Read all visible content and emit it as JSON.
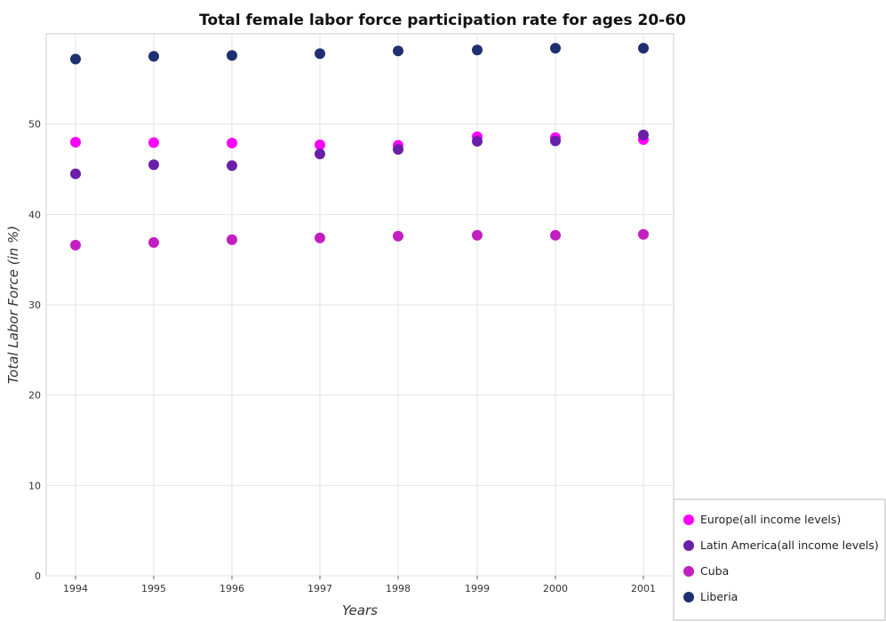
{
  "chart_data": {
    "type": "scatter",
    "title": "Total female labor force participation rate for ages 20-60",
    "xlabel": "Years",
    "ylabel": "Total Labor Force (in %)",
    "categories": [
      "1994",
      "1995",
      "1996",
      "1997",
      "1998",
      "1999",
      "2000",
      "2001"
    ],
    "ylim": [
      0,
      60
    ],
    "yticks": [
      0,
      10,
      20,
      30,
      40,
      50
    ],
    "grid": true,
    "legend_position": "bottom-right",
    "series": [
      {
        "name": "Europe(all income levels)",
        "color": "#ff00ff",
        "values": [
          48.0,
          47.95,
          47.9,
          47.7,
          47.65,
          48.6,
          48.5,
          48.3
        ]
      },
      {
        "name": "Latin America(all income levels)",
        "color": "#6a1fa8",
        "values": [
          44.5,
          45.5,
          45.4,
          46.7,
          47.2,
          48.1,
          48.15,
          48.8
        ]
      },
      {
        "name": "Cuba",
        "color": "#c21fc2",
        "values": [
          36.6,
          36.9,
          37.2,
          37.4,
          37.6,
          37.7,
          37.7,
          37.8
        ]
      },
      {
        "name": "Liberia",
        "color": "#1f2f70",
        "values": [
          57.2,
          57.5,
          57.6,
          57.8,
          58.1,
          58.2,
          58.4,
          58.4
        ]
      }
    ]
  }
}
